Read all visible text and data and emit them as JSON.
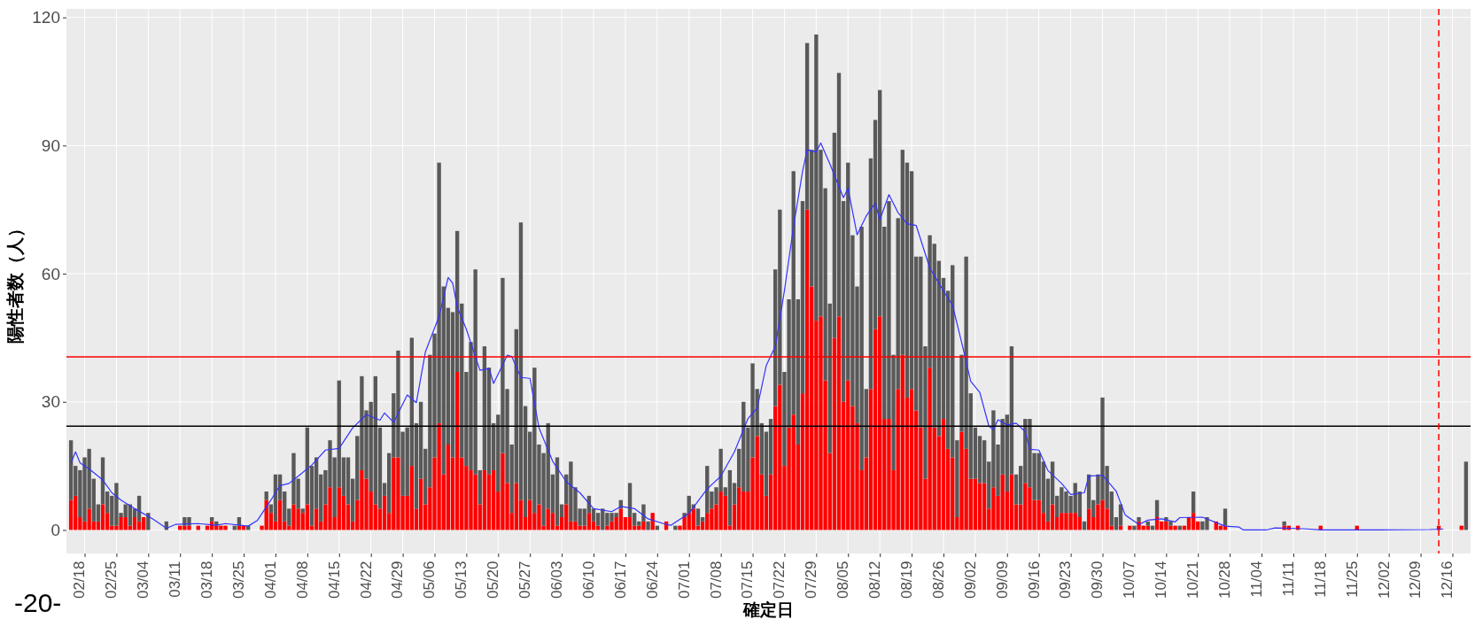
{
  "chart_data": {
    "type": "bar",
    "ylabel": "陽性者数（人）",
    "xlabel": "確定日",
    "annotations": [
      "-20-"
    ],
    "x": [
      "--02-15",
      "--02-16",
      "--02-17",
      "--02-18",
      "--02-19",
      "--02-20",
      "--02-21",
      "--02-22",
      "--02-23",
      "--02-24",
      "--02-25",
      "--02-26",
      "--02-27",
      "--02-28",
      "--03-01",
      "--03-02",
      "--03-03",
      "--03-04",
      "--03-05",
      "--03-06",
      "--03-07",
      "--03-08",
      "--03-09",
      "--03-10",
      "--03-11",
      "--03-12",
      "--03-13",
      "--03-14",
      "--03-15",
      "--03-16",
      "--03-17",
      "--03-18",
      "--03-19",
      "--03-20",
      "--03-21",
      "--03-22",
      "--03-23",
      "--03-24",
      "--03-25",
      "--03-26",
      "--03-27",
      "--03-28",
      "--03-29",
      "--03-30",
      "--03-31",
      "--04-01",
      "--04-02",
      "--04-03",
      "--04-04",
      "--04-05",
      "--04-06",
      "--04-07",
      "--04-08",
      "--04-09",
      "--04-10",
      "--04-11",
      "--04-12",
      "--04-13",
      "--04-14",
      "--04-15",
      "--04-16",
      "--04-17",
      "--04-18",
      "--04-19",
      "--04-20",
      "--04-21",
      "--04-22",
      "--04-23",
      "--04-24",
      "--04-25",
      "--04-26",
      "--04-27",
      "--04-28",
      "--04-29",
      "--04-30",
      "--05-01",
      "--05-02",
      "--05-03",
      "--05-04",
      "--05-05",
      "--05-06",
      "--05-07",
      "--05-08",
      "--05-09",
      "--05-10",
      "--05-11",
      "--05-12",
      "--05-13",
      "--05-14",
      "--05-15",
      "--05-16",
      "--05-17",
      "--05-18",
      "--05-19",
      "--05-20",
      "--05-21",
      "--05-22",
      "--05-23",
      "--05-24",
      "--05-25",
      "--05-26",
      "--05-27",
      "--05-28",
      "--05-29",
      "--05-30",
      "--05-31",
      "--06-01",
      "--06-02",
      "--06-03",
      "--06-04",
      "--06-05",
      "--06-06",
      "--06-07",
      "--06-08",
      "--06-09",
      "--06-10",
      "--06-11",
      "--06-12",
      "--06-13",
      "--06-14",
      "--06-15",
      "--06-16",
      "--06-17",
      "--06-18",
      "--06-19",
      "--06-20",
      "--06-21",
      "--06-22",
      "--06-23",
      "--06-24",
      "--06-25",
      "--06-26",
      "--06-27",
      "--06-28",
      "--06-29",
      "--06-30",
      "--07-01",
      "--07-02",
      "--07-03",
      "--07-04",
      "--07-05",
      "--07-06",
      "--07-07",
      "--07-08",
      "--07-09",
      "--07-10",
      "--07-11",
      "--07-12",
      "--07-13",
      "--07-14",
      "--07-15",
      "--07-16",
      "--07-17",
      "--07-18",
      "--07-19",
      "--07-20",
      "--07-21",
      "--07-22",
      "--07-23",
      "--07-24",
      "--07-25",
      "--07-26",
      "--07-27",
      "--07-28",
      "--07-29",
      "--07-30",
      "--07-31",
      "--08-01",
      "--08-02",
      "--08-03",
      "--08-04",
      "--08-05",
      "--08-06",
      "--08-07",
      "--08-08",
      "--08-09",
      "--08-10",
      "--08-11",
      "--08-12",
      "--08-13",
      "--08-14",
      "--08-15",
      "--08-16",
      "--08-17",
      "--08-18",
      "--08-19",
      "--08-20",
      "--08-21",
      "--08-22",
      "--08-23",
      "--08-24",
      "--08-25",
      "--08-26",
      "--08-27",
      "--08-28",
      "--08-29",
      "--08-30",
      "--08-31",
      "--09-01",
      "--09-02",
      "--09-03",
      "--09-04",
      "--09-05",
      "--09-06",
      "--09-07",
      "--09-08",
      "--09-09",
      "--09-10",
      "--09-11",
      "--09-12",
      "--09-13",
      "--09-14",
      "--09-15",
      "--09-16",
      "--09-17",
      "--09-18",
      "--09-19",
      "--09-20",
      "--09-21",
      "--09-22",
      "--09-23",
      "--09-24",
      "--09-25",
      "--09-26",
      "--09-27",
      "--09-28",
      "--09-29",
      "--09-30",
      "--10-01",
      "--10-02",
      "--10-03",
      "--10-04",
      "--10-05",
      "--10-06",
      "--10-07",
      "--10-08",
      "--10-09",
      "--10-10",
      "--10-11",
      "--10-12",
      "--10-13",
      "--10-14",
      "--10-15",
      "--10-16",
      "--10-17",
      "--10-18",
      "--10-19",
      "--10-20",
      "--10-21",
      "--10-22",
      "--10-23",
      "--10-24",
      "--10-25",
      "--10-26",
      "--10-27",
      "--10-28",
      "--10-29",
      "--10-30",
      "--10-31",
      "--11-01",
      "--11-02",
      "--11-03",
      "--11-04",
      "--11-05",
      "--11-06",
      "--11-07",
      "--11-08",
      "--11-09",
      "--11-10",
      "--11-11",
      "--11-12",
      "--11-13",
      "--11-14",
      "--11-15",
      "--11-16",
      "--11-17",
      "--11-18",
      "--11-19",
      "--11-20",
      "--11-21",
      "--11-22",
      "--11-23",
      "--11-24",
      "--11-25",
      "--11-26",
      "--11-27",
      "--11-28",
      "--11-29",
      "--11-30",
      "--12-01",
      "--12-02",
      "--12-03",
      "--12-04",
      "--12-05",
      "--12-06",
      "--12-07",
      "--12-08",
      "--12-09",
      "--12-10",
      "--12-11",
      "--12-12",
      "--12-13",
      "--12-14",
      "--12-15",
      "--12-16",
      "--12-17",
      "--12-18",
      "--12-19"
    ],
    "series": [
      {
        "color": "#ff0000",
        "values": [
          7,
          8,
          3,
          2,
          5,
          2,
          2,
          6,
          4,
          1,
          1,
          3,
          3,
          1,
          3,
          2,
          3,
          0,
          0,
          0,
          0,
          0,
          0,
          0,
          1,
          1,
          1,
          0,
          1,
          0,
          1,
          2,
          1,
          1,
          1,
          0,
          0,
          1,
          1,
          0,
          0,
          0,
          1,
          7,
          4,
          2,
          7,
          2,
          1,
          6,
          5,
          4,
          6,
          1,
          5,
          2,
          6,
          10,
          3,
          10,
          8,
          6,
          2,
          7,
          14,
          12,
          9,
          6,
          5,
          8,
          4,
          17,
          17,
          8,
          8,
          15,
          5,
          12,
          6,
          10,
          17,
          25,
          13,
          20,
          17,
          37,
          17,
          15,
          14,
          13,
          6,
          14,
          13,
          14,
          9,
          18,
          11,
          4,
          11,
          7,
          3,
          7,
          4,
          6,
          1,
          5,
          4,
          1,
          3,
          6,
          2,
          2,
          1,
          1,
          4,
          2,
          1,
          0,
          1,
          2,
          3,
          5,
          3,
          3,
          1,
          1,
          2,
          0,
          4,
          0,
          0,
          2,
          0,
          0,
          1,
          3,
          4,
          5,
          1,
          2,
          4,
          5,
          6,
          9,
          8,
          1,
          6,
          10,
          9,
          9,
          17,
          22,
          13,
          8,
          13,
          29,
          34,
          15,
          24,
          27,
          20,
          32,
          75,
          57,
          49,
          50,
          35,
          18,
          45,
          50,
          30,
          35,
          29,
          25,
          14,
          17,
          33,
          47,
          50,
          26,
          26,
          14,
          33,
          41,
          31,
          33,
          28,
          24,
          12,
          38,
          24,
          22,
          26,
          19,
          17,
          3,
          23,
          19,
          12,
          12,
          11,
          11,
          5,
          10,
          8,
          13,
          9,
          13,
          6,
          6,
          11,
          10,
          7,
          7,
          4,
          2,
          6,
          3,
          4,
          4,
          4,
          4,
          3,
          0,
          5,
          3,
          6,
          7,
          5,
          1,
          0,
          1,
          0,
          1,
          0,
          2,
          1,
          1,
          0,
          3,
          2,
          2,
          1,
          1,
          0,
          1,
          3,
          4,
          2,
          0,
          0,
          0,
          2,
          1,
          1,
          0,
          0,
          0,
          0,
          0,
          0,
          0,
          0,
          0,
          0,
          0,
          0,
          1,
          1,
          0,
          1,
          0,
          0,
          0,
          0,
          1,
          0,
          0,
          0,
          0,
          0,
          0,
          0,
          1,
          0,
          0,
          0,
          0,
          0,
          0,
          0,
          0,
          0,
          0,
          0,
          0,
          0,
          0,
          0,
          0,
          0,
          1,
          0,
          0,
          0,
          0,
          1,
          0
        ]
      },
      {
        "color": "#595959",
        "values": [
          14,
          7,
          11,
          15,
          14,
          10,
          4,
          11,
          5,
          7,
          10,
          1,
          3,
          5,
          2,
          6,
          0,
          4,
          0,
          0,
          0,
          2,
          0,
          0,
          0,
          2,
          2,
          0,
          0,
          0,
          0,
          1,
          1,
          0,
          0,
          0,
          1,
          2,
          0,
          1,
          0,
          0,
          0,
          2,
          2,
          11,
          6,
          7,
          4,
          12,
          7,
          1,
          18,
          14,
          12,
          11,
          8,
          11,
          14,
          25,
          9,
          11,
          10,
          15,
          22,
          16,
          21,
          30,
          19,
          3,
          14,
          15,
          25,
          15,
          16,
          30,
          20,
          18,
          13,
          31,
          29,
          61,
          44,
          32,
          34,
          33,
          36,
          22,
          30,
          48,
          8,
          29,
          25,
          11,
          18,
          41,
          22,
          16,
          36,
          65,
          26,
          16,
          34,
          14,
          17,
          20,
          9,
          16,
          3,
          7,
          14,
          8,
          4,
          4,
          4,
          3,
          3,
          5,
          3,
          2,
          1,
          2,
          0,
          8,
          3,
          1,
          4,
          2,
          0,
          1,
          0,
          0,
          0,
          1,
          0,
          1,
          4,
          1,
          4,
          1,
          11,
          4,
          4,
          10,
          2,
          13,
          5,
          9,
          21,
          15,
          22,
          11,
          12,
          15,
          13,
          32,
          41,
          22,
          30,
          57,
          34,
          45,
          39,
          32,
          67,
          39,
          45,
          35,
          48,
          57,
          47,
          51,
          40,
          32,
          57,
          16,
          54,
          49,
          53,
          45,
          51,
          27,
          40,
          48,
          55,
          51,
          36,
          40,
          31,
          31,
          43,
          41,
          33,
          37,
          45,
          18,
          18,
          45,
          20,
          12,
          11,
          10,
          11,
          18,
          12,
          13,
          18,
          30,
          7,
          9,
          15,
          16,
          11,
          11,
          12,
          10,
          10,
          5,
          6,
          5,
          4,
          7,
          6,
          2,
          8,
          4,
          7,
          24,
          10,
          8,
          3,
          5,
          0,
          0,
          1,
          1,
          0,
          1,
          1,
          4,
          0,
          1,
          1,
          0,
          1,
          0,
          0,
          5,
          0,
          2,
          3,
          0,
          0,
          0,
          4,
          0,
          0,
          0,
          0,
          0,
          0,
          0,
          0,
          0,
          0,
          0,
          0,
          1,
          0,
          0,
          0,
          0,
          0,
          0,
          0,
          0,
          0,
          0,
          0,
          0,
          0,
          0,
          0,
          0,
          0,
          0,
          0,
          0,
          0,
          0,
          0,
          0,
          0,
          0,
          0,
          0,
          0,
          0,
          0,
          0,
          0,
          0,
          0,
          0,
          0,
          0,
          0,
          16
        ]
      },
      {
        "type": "line",
        "color": "#3333ff",
        "x": [
          "--02-15",
          "--02-16",
          "--02-17",
          "--02-19",
          "--02-22",
          "--02-24",
          "--02-26",
          "--03-01",
          "--03-05",
          "--03-08",
          "--03-10",
          "--03-15",
          "--03-19",
          "--03-21",
          "--03-26",
          "--03-28",
          "--03-31",
          "--04-02",
          "--04-04",
          "--04-06",
          "--04-09",
          "--04-12",
          "--04-15",
          "--04-18",
          "--04-21",
          "--04-24",
          "--04-25",
          "--04-27",
          "--04-30",
          "--05-02",
          "--05-04",
          "--05-07",
          "--05-09",
          "--05-10",
          "--05-11",
          "--05-13",
          "--05-16",
          "--05-18",
          "--05-19",
          "--05-22",
          "--05-23",
          "--05-25",
          "--05-27",
          "--05-29",
          "--06-01",
          "--06-04",
          "--06-07",
          "--06-10",
          "--06-14",
          "--06-16",
          "--06-19",
          "--06-22",
          "--06-26",
          "--06-27",
          "--07-01",
          "--07-05",
          "--07-08",
          "--07-11",
          "--07-14",
          "--07-16",
          "--07-18",
          "--07-20",
          "--07-22",
          "--07-24",
          "--07-26",
          "--07-27",
          "--07-29",
          "--07-30",
          "--08-01",
          "--08-04",
          "--08-05",
          "--08-07",
          "--08-09",
          "--08-11",
          "--08-12",
          "--08-14",
          "--08-16",
          "--08-18",
          "--08-20",
          "--08-23",
          "--08-26",
          "--08-28",
          "--08-30",
          "--09-01",
          "--09-03",
          "--09-05",
          "--09-06",
          "--09-07",
          "--09-09",
          "--09-11",
          "--09-13",
          "--09-14",
          "--09-16",
          "--09-18",
          "--09-21",
          "--09-23",
          "--09-26",
          "--09-27",
          "--09-30",
          "--10-03",
          "--10-05",
          "--10-08",
          "--10-10",
          "--10-13",
          "--10-16",
          "--10-17",
          "--10-22",
          "--10-27",
          "--10-30",
          "--10-31",
          "--11-05",
          "--11-07",
          "--11-13",
          "--11-17",
          "--11-30",
          "--12-11",
          "--12-14"
        ],
        "values": [
          15.7,
          18.3,
          15.7,
          14.3,
          11.7,
          8.7,
          7,
          5,
          2.6,
          0.4,
          1.3,
          1.5,
          1.1,
          1.5,
          0.9,
          2.2,
          7,
          10.4,
          10.9,
          12.6,
          15.2,
          18.7,
          19.1,
          23.9,
          27,
          25.7,
          27.4,
          25.2,
          31.6,
          29.8,
          41.7,
          50,
          59.1,
          57.8,
          52.2,
          47,
          37.4,
          37.8,
          34.3,
          40.9,
          40.6,
          35.7,
          35.5,
          23.9,
          16.1,
          11.3,
          8.7,
          5,
          4.3,
          5.5,
          5,
          2.6,
          1.3,
          1.1,
          3.9,
          9.6,
          12.6,
          18.3,
          26.1,
          28.5,
          38.5,
          43,
          56,
          71,
          84,
          89,
          88.5,
          90.6,
          85.7,
          77.8,
          80,
          69.1,
          73.5,
          76.5,
          72.6,
          78.5,
          74.3,
          71.7,
          71.3,
          61.3,
          56,
          52.6,
          43.9,
          34.8,
          32.2,
          24.3,
          23.5,
          25.8,
          24.6,
          25,
          23,
          18.9,
          18.7,
          13.9,
          10.9,
          8.3,
          8.7,
          12.6,
          12.8,
          9.1,
          3.5,
          1.3,
          2.3,
          2.6,
          1.9,
          2.9,
          3,
          0.9,
          0.7,
          0,
          0,
          0.5,
          0.3,
          0,
          0,
          0.1,
          0.2
        ]
      }
    ],
    "xlim": [
      "--02-14",
      "--12-20"
    ],
    "xticks": [
      {
        "value": "--02-18",
        "label": "02/18"
      },
      {
        "value": "--02-25",
        "label": "02/25"
      },
      {
        "value": "--03-04",
        "label": "03/04"
      },
      {
        "value": "--03-11",
        "label": "03/11"
      },
      {
        "value": "--03-18",
        "label": "03/18"
      },
      {
        "value": "--03-25",
        "label": "03/25"
      },
      {
        "value": "--04-01",
        "label": "04/01"
      },
      {
        "value": "--04-08",
        "label": "04/08"
      },
      {
        "value": "--04-15",
        "label": "04/15"
      },
      {
        "value": "--04-22",
        "label": "04/22"
      },
      {
        "value": "--04-29",
        "label": "04/29"
      },
      {
        "value": "--05-06",
        "label": "05/06"
      },
      {
        "value": "--05-13",
        "label": "05/13"
      },
      {
        "value": "--05-20",
        "label": "05/20"
      },
      {
        "value": "--05-27",
        "label": "05/27"
      },
      {
        "value": "--06-03",
        "label": "06/03"
      },
      {
        "value": "--06-10",
        "label": "06/10"
      },
      {
        "value": "--06-17",
        "label": "06/17"
      },
      {
        "value": "--06-24",
        "label": "06/24"
      },
      {
        "value": "--07-01",
        "label": "07/01"
      },
      {
        "value": "--07-08",
        "label": "07/08"
      },
      {
        "value": "--07-15",
        "label": "07/15"
      },
      {
        "value": "--07-22",
        "label": "07/22"
      },
      {
        "value": "--07-29",
        "label": "07/29"
      },
      {
        "value": "--08-05",
        "label": "08/05"
      },
      {
        "value": "--08-12",
        "label": "08/12"
      },
      {
        "value": "--08-19",
        "label": "08/19"
      },
      {
        "value": "--08-26",
        "label": "08/26"
      },
      {
        "value": "--09-02",
        "label": "09/02"
      },
      {
        "value": "--09-09",
        "label": "09/09"
      },
      {
        "value": "--09-16",
        "label": "09/16"
      },
      {
        "value": "--09-23",
        "label": "09/23"
      },
      {
        "value": "--09-30",
        "label": "09/30"
      },
      {
        "value": "--10-07",
        "label": "10/07"
      },
      {
        "value": "--10-14",
        "label": "10/14"
      },
      {
        "value": "--10-21",
        "label": "10/21"
      },
      {
        "value": "--10-28",
        "label": "10/28"
      },
      {
        "value": "--11-04",
        "label": "11/04"
      },
      {
        "value": "--11-11",
        "label": "11/11"
      },
      {
        "value": "--11-18",
        "label": "11/18"
      },
      {
        "value": "--11-25",
        "label": "11/25"
      },
      {
        "value": "--12-02",
        "label": "12/02"
      },
      {
        "value": "--12-09",
        "label": "12/09"
      },
      {
        "value": "--12-16",
        "label": "12/16"
      }
    ],
    "stacked": true,
    "ylim": [
      -5.5,
      122
    ],
    "yticks": [
      0,
      30,
      60,
      90,
      120
    ],
    "grid": true,
    "ref_lines": [
      {
        "axis": "y",
        "value": 40.5,
        "color": "#ff0000",
        "line_style": "solid"
      },
      {
        "axis": "y",
        "value": 24.3,
        "color": "#000000",
        "line_style": "solid"
      },
      {
        "axis": "x",
        "value": "--12-13",
        "color": "#ff0000",
        "line_style": "dashed"
      }
    ]
  }
}
